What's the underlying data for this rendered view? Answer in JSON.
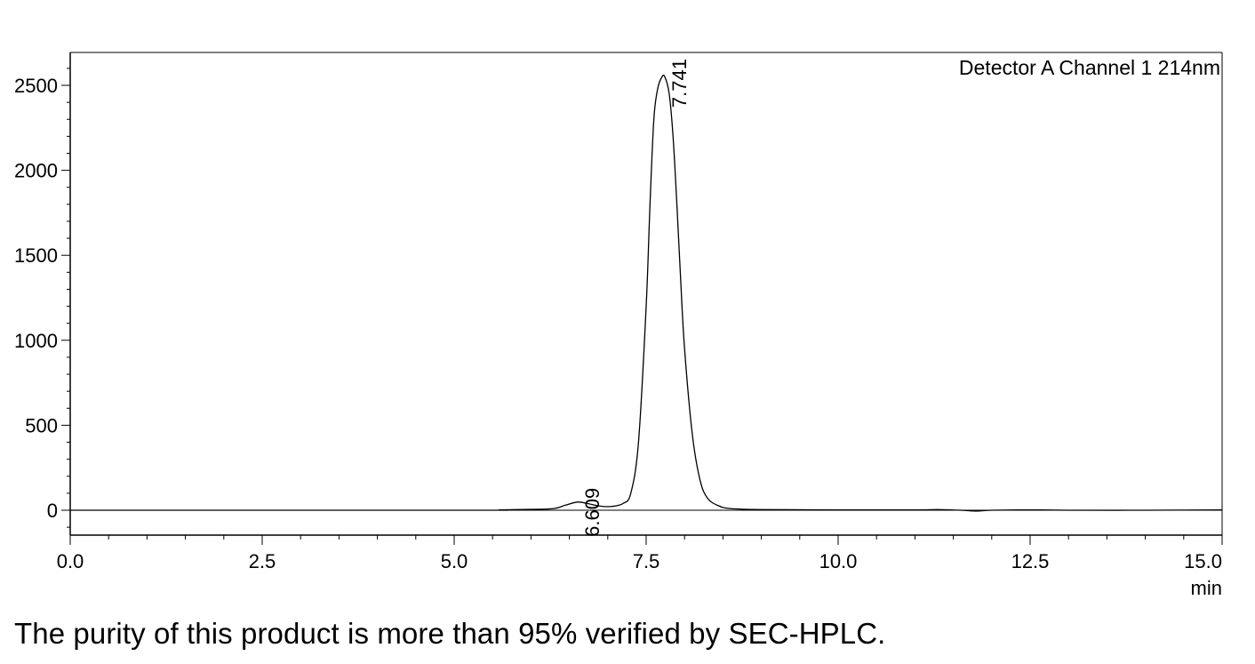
{
  "chart_data": {
    "type": "line",
    "title": "",
    "xlabel": "min",
    "ylabel": "",
    "xlim": [
      0.0,
      15.0
    ],
    "ylim": [
      -150,
      2700
    ],
    "x_ticks": [
      "0.0",
      "2.5",
      "5.0",
      "7.5",
      "10.0",
      "12.5",
      "15.0"
    ],
    "x_tick_values": [
      0,
      2.5,
      5,
      7.5,
      10,
      12.5,
      15
    ],
    "y_ticks": [
      "0",
      "500",
      "1000",
      "1500",
      "2000",
      "2500"
    ],
    "y_tick_values": [
      0,
      500,
      1000,
      1500,
      2000,
      2500
    ],
    "grid": false,
    "legend": {
      "position": "top-right",
      "entries": [
        "Detector A Channel 1 214nm"
      ]
    },
    "series": [
      {
        "name": "Detector A Channel 1 214nm",
        "color": "#000000",
        "x": [
          0.0,
          5.2,
          5.6,
          6.0,
          6.3,
          6.45,
          6.609,
          6.75,
          6.9,
          7.05,
          7.2,
          7.3,
          7.4,
          7.5,
          7.55,
          7.6,
          7.65,
          7.7,
          7.741,
          7.8,
          7.85,
          7.9,
          7.95,
          8.0,
          8.1,
          8.2,
          8.3,
          8.45,
          8.6,
          9.0,
          10.0,
          11.0,
          11.3,
          11.6,
          11.8,
          12.0,
          12.5,
          13.0,
          14.0,
          15.0
        ],
        "values": [
          0,
          0,
          2,
          5,
          10,
          30,
          48,
          38,
          24,
          22,
          40,
          100,
          400,
          1200,
          1800,
          2300,
          2480,
          2545,
          2552,
          2450,
          2200,
          1800,
          1350,
          950,
          450,
          180,
          70,
          25,
          10,
          4,
          2,
          2,
          4,
          0,
          -5,
          0,
          2,
          0,
          0,
          2
        ]
      }
    ],
    "annotations": [
      {
        "text": "6.609",
        "x": 6.609,
        "y": 48
      },
      {
        "text": "7.741",
        "x": 7.741,
        "y": 2552
      }
    ]
  },
  "caption": "The purity of this product is more than 95% verified by SEC-HPLC."
}
